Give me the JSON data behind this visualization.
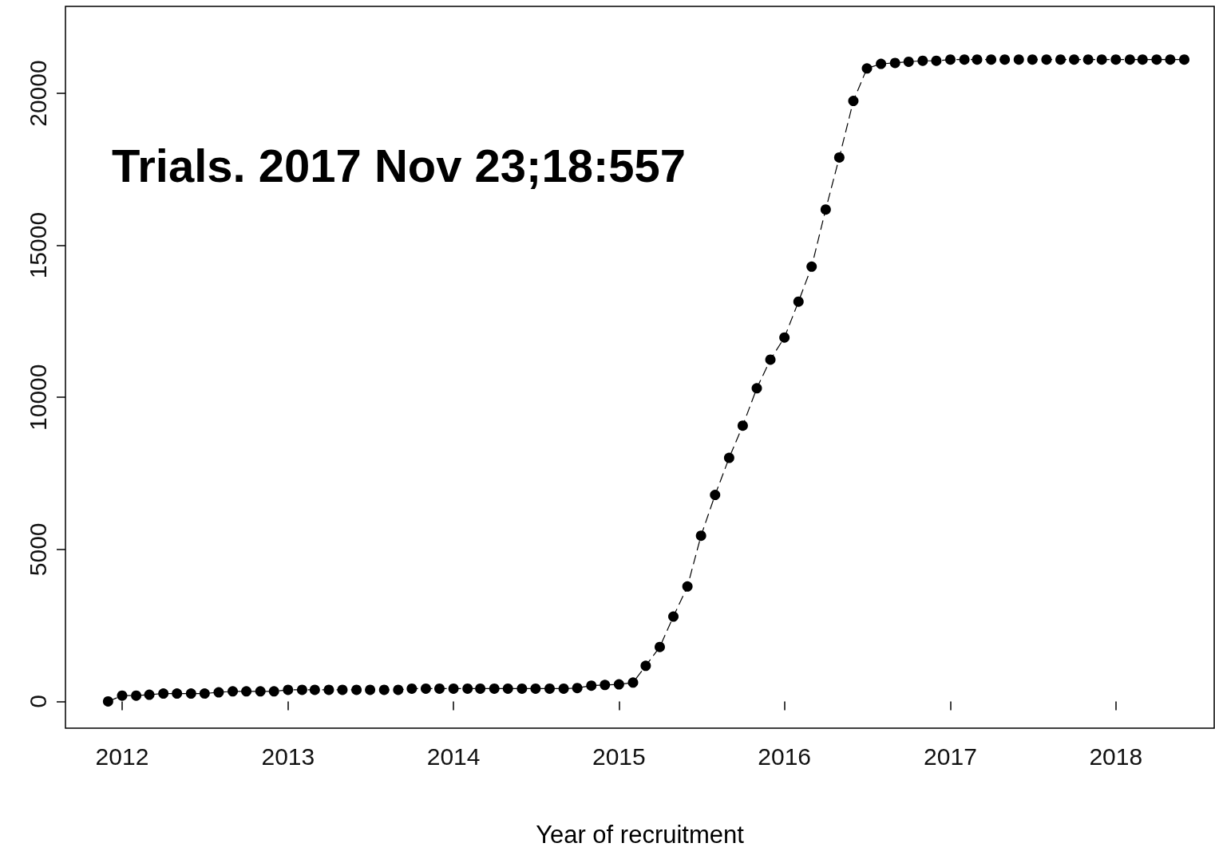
{
  "chart_data": {
    "type": "line",
    "xlabel": "Year of recruitment",
    "annotations": [
      "Trials. 2017 Nov 23;18:557"
    ],
    "x": [
      "2011-12",
      "2012-01",
      "2012-02",
      "2012-03",
      "2012-04",
      "2012-05",
      "2012-06",
      "2012-07",
      "2012-08",
      "2012-09",
      "2012-10",
      "2012-11",
      "2012-12",
      "2013-01",
      "2013-02",
      "2013-03",
      "2013-04",
      "2013-05",
      "2013-06",
      "2013-07",
      "2013-08",
      "2013-09",
      "2013-10",
      "2013-11",
      "2013-12",
      "2014-01",
      "2014-02",
      "2014-03",
      "2014-04",
      "2014-05",
      "2014-06",
      "2014-07",
      "2014-08",
      "2014-09",
      "2014-10",
      "2014-11",
      "2014-12",
      "2015-01",
      "2015-02",
      "2015-03",
      "2015-04",
      "2015-05",
      "2015-06",
      "2015-07",
      "2015-08",
      "2015-09",
      "2015-10",
      "2015-11",
      "2015-12",
      "2016-01",
      "2016-02",
      "2016-03",
      "2016-04",
      "2016-05",
      "2016-06",
      "2016-07",
      "2016-08",
      "2016-09",
      "2016-10",
      "2016-11",
      "2016-12",
      "2017-01",
      "2017-02",
      "2017-03",
      "2017-04",
      "2017-05",
      "2017-06",
      "2017-07",
      "2017-08",
      "2017-09",
      "2017-10",
      "2017-11",
      "2017-12",
      "2018-01",
      "2018-02",
      "2018-03",
      "2018-04",
      "2018-05",
      "2018-06"
    ],
    "series": [
      {
        "color": "#000000",
        "values": [
          0,
          190,
          190,
          220,
          260,
          260,
          260,
          260,
          300,
          330,
          330,
          330,
          330,
          380,
          380,
          380,
          380,
          380,
          380,
          380,
          380,
          380,
          420,
          420,
          420,
          420,
          420,
          420,
          420,
          420,
          420,
          420,
          420,
          420,
          440,
          520,
          540,
          560,
          620,
          1170,
          1790,
          2790,
          3780,
          5450,
          6790,
          8010,
          9070,
          10300,
          11240,
          11970,
          13150,
          14300,
          16180,
          17890,
          19750,
          20820,
          20970,
          21000,
          21040,
          21070,
          21070,
          21110,
          21110,
          21110,
          21110,
          21110,
          21110,
          21110,
          21110,
          21110,
          21110,
          21110,
          21110,
          21110,
          21110,
          21110,
          21110,
          21110,
          21110
        ]
      }
    ],
    "xlim": [
      "2011-08-29",
      "2018-08-06"
    ],
    "xticks": [
      "2012",
      "2013",
      "2014",
      "2015",
      "2016",
      "2017",
      "2018"
    ],
    "ylim": [
      -880,
      22860
    ],
    "yticks": [
      0,
      5000,
      10000,
      15000,
      20000
    ],
    "marker": "circle",
    "line_style": "dashed"
  }
}
